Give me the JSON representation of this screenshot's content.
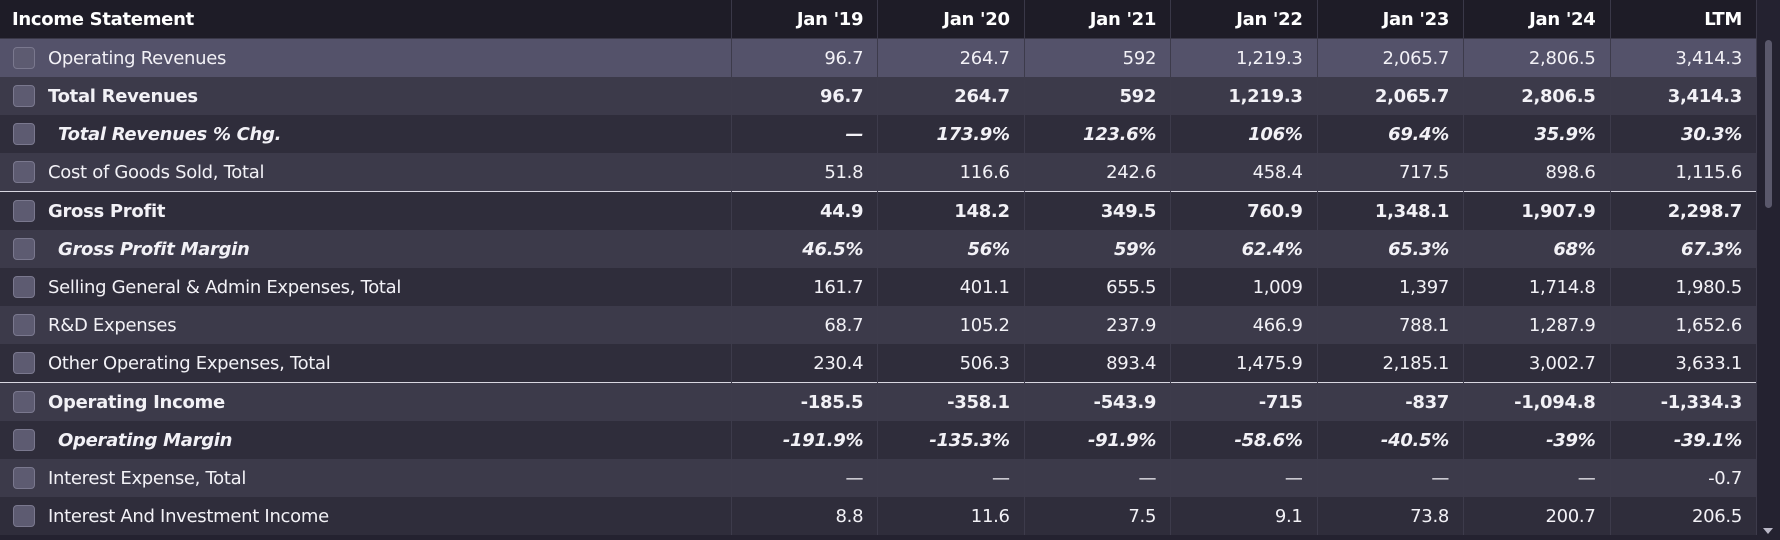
{
  "table": {
    "header": {
      "title": "Income Statement",
      "columns": [
        "Jan '19",
        "Jan '20",
        "Jan '21",
        "Jan '22",
        "Jan '23",
        "Jan '24",
        "LTM"
      ]
    },
    "rows": [
      {
        "label": "Operating Revenues",
        "values": [
          "96.7",
          "264.7",
          "592",
          "1,219.3",
          "2,065.7",
          "2,806.5",
          "3,414.3"
        ]
      },
      {
        "label": "Total Revenues",
        "values": [
          "96.7",
          "264.7",
          "592",
          "1,219.3",
          "2,065.7",
          "2,806.5",
          "3,414.3"
        ]
      },
      {
        "label": "Total Revenues % Chg.",
        "values": [
          "—",
          "173.9%",
          "123.6%",
          "106%",
          "69.4%",
          "35.9%",
          "30.3%"
        ]
      },
      {
        "label": "Cost of Goods Sold, Total",
        "values": [
          "51.8",
          "116.6",
          "242.6",
          "458.4",
          "717.5",
          "898.6",
          "1,115.6"
        ]
      },
      {
        "label": "Gross Profit",
        "values": [
          "44.9",
          "148.2",
          "349.5",
          "760.9",
          "1,348.1",
          "1,907.9",
          "2,298.7"
        ]
      },
      {
        "label": "Gross Profit Margin",
        "values": [
          "46.5%",
          "56%",
          "59%",
          "62.4%",
          "65.3%",
          "68%",
          "67.3%"
        ]
      },
      {
        "label": "Selling General & Admin Expenses, Total",
        "values": [
          "161.7",
          "401.1",
          "655.5",
          "1,009",
          "1,397",
          "1,714.8",
          "1,980.5"
        ]
      },
      {
        "label": "R&D Expenses",
        "values": [
          "68.7",
          "105.2",
          "237.9",
          "466.9",
          "788.1",
          "1,287.9",
          "1,652.6"
        ]
      },
      {
        "label": "Other Operating Expenses, Total",
        "values": [
          "230.4",
          "506.3",
          "893.4",
          "1,475.9",
          "2,185.1",
          "3,002.7",
          "3,633.1"
        ]
      },
      {
        "label": "Operating Income",
        "values": [
          "-185.5",
          "-358.1",
          "-543.9",
          "-715",
          "-837",
          "-1,094.8",
          "-1,334.3"
        ]
      },
      {
        "label": "Operating Margin",
        "values": [
          "-191.9%",
          "-135.3%",
          "-91.9%",
          "-58.6%",
          "-40.5%",
          "-39%",
          "-39.1%"
        ]
      },
      {
        "label": "Interest Expense, Total",
        "values": [
          "—",
          "—",
          "—",
          "—",
          "—",
          "—",
          "-0.7"
        ]
      },
      {
        "label": "Interest And Investment Income",
        "values": [
          "8.8",
          "11.6",
          "7.5",
          "9.1",
          "73.8",
          "200.7",
          "206.5"
        ]
      }
    ]
  }
}
